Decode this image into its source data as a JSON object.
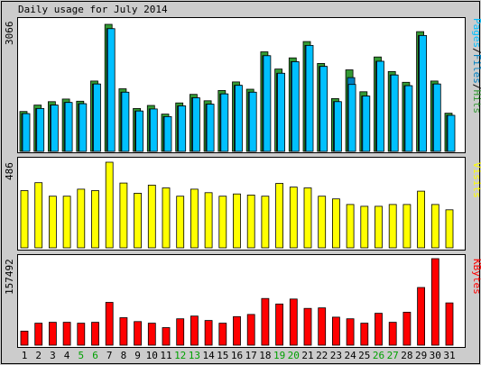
{
  "title": "Daily usage for July 2014",
  "colors": {
    "hits": "#339933",
    "files": "#0080C0",
    "pages": "#00C0FF",
    "visits": "#FFFF00",
    "kbytes": "#FF0000",
    "weekend": "#00A000",
    "text": "#000000",
    "panel_bg": "#ffffff",
    "frame_bg": "#CCCCCC"
  },
  "legends": {
    "top": [
      "Pages",
      "/",
      "Files",
      "/",
      "Hits"
    ],
    "middle": "Visits",
    "bottom": "KBytes"
  },
  "chart_data": [
    {
      "type": "bar",
      "title": "Daily usage for July 2014",
      "ylabel": "3066",
      "categories": [
        "1",
        "2",
        "3",
        "4",
        "5",
        "6",
        "7",
        "8",
        "9",
        "10",
        "11",
        "12",
        "13",
        "14",
        "15",
        "16",
        "17",
        "18",
        "19",
        "20",
        "21",
        "22",
        "23",
        "24",
        "25",
        "26",
        "27",
        "28",
        "29",
        "30",
        "31"
      ],
      "weekend_days": [
        "5",
        "6",
        "12",
        "13",
        "19",
        "20",
        "26",
        "27"
      ],
      "ylim": [
        0,
        3066
      ],
      "series": [
        {
          "name": "Hits",
          "values": [
            930,
            1080,
            1160,
            1220,
            1170,
            1640,
            2960,
            1460,
            1000,
            1070,
            870,
            1130,
            1330,
            1180,
            1420,
            1620,
            1450,
            2320,
            1920,
            2180,
            2560,
            2050,
            1230,
            1900,
            1390,
            2200,
            1860,
            1610,
            2790,
            1640,
            890
          ]
        },
        {
          "name": "Files",
          "values": [
            880,
            1000,
            1080,
            1140,
            1110,
            1570,
            2860,
            1380,
            940,
            990,
            810,
            1060,
            1250,
            1100,
            1340,
            1540,
            1380,
            2230,
            1820,
            2090,
            2470,
            1980,
            1160,
            1720,
            1290,
            2100,
            1780,
            1530,
            2700,
            1570,
            840
          ]
        },
        {
          "name": "Pages",
          "values": [
            880,
            1000,
            1080,
            1140,
            1110,
            1570,
            2860,
            1380,
            940,
            990,
            810,
            1060,
            1250,
            1100,
            1340,
            1540,
            1380,
            2230,
            1820,
            2090,
            2470,
            1980,
            1160,
            1560,
            1290,
            2100,
            1780,
            1530,
            2700,
            1570,
            840
          ]
        }
      ]
    },
    {
      "type": "bar",
      "ylabel": "486",
      "ylim": [
        0,
        486
      ],
      "series": [
        {
          "name": "Visits",
          "values": [
            325,
            370,
            293,
            293,
            333,
            325,
            486,
            368,
            310,
            356,
            340,
            293,
            333,
            313,
            293,
            306,
            300,
            293,
            366,
            345,
            340,
            293,
            278,
            246,
            236,
            236,
            246,
            246,
            322,
            246,
            216
          ]
        }
      ]
    },
    {
      "type": "bar",
      "ylabel": "157492",
      "ylim": [
        0,
        157492
      ],
      "series": [
        {
          "name": "KBytes",
          "values": [
            25600,
            40000,
            41600,
            41600,
            40000,
            41600,
            78000,
            50000,
            43000,
            40000,
            32000,
            48000,
            53000,
            45000,
            40000,
            52000,
            56000,
            85000,
            75000,
            84000,
            67000,
            68000,
            51000,
            48000,
            40000,
            58000,
            41600,
            60000,
            105000,
            157492,
            77000
          ]
        }
      ]
    }
  ]
}
